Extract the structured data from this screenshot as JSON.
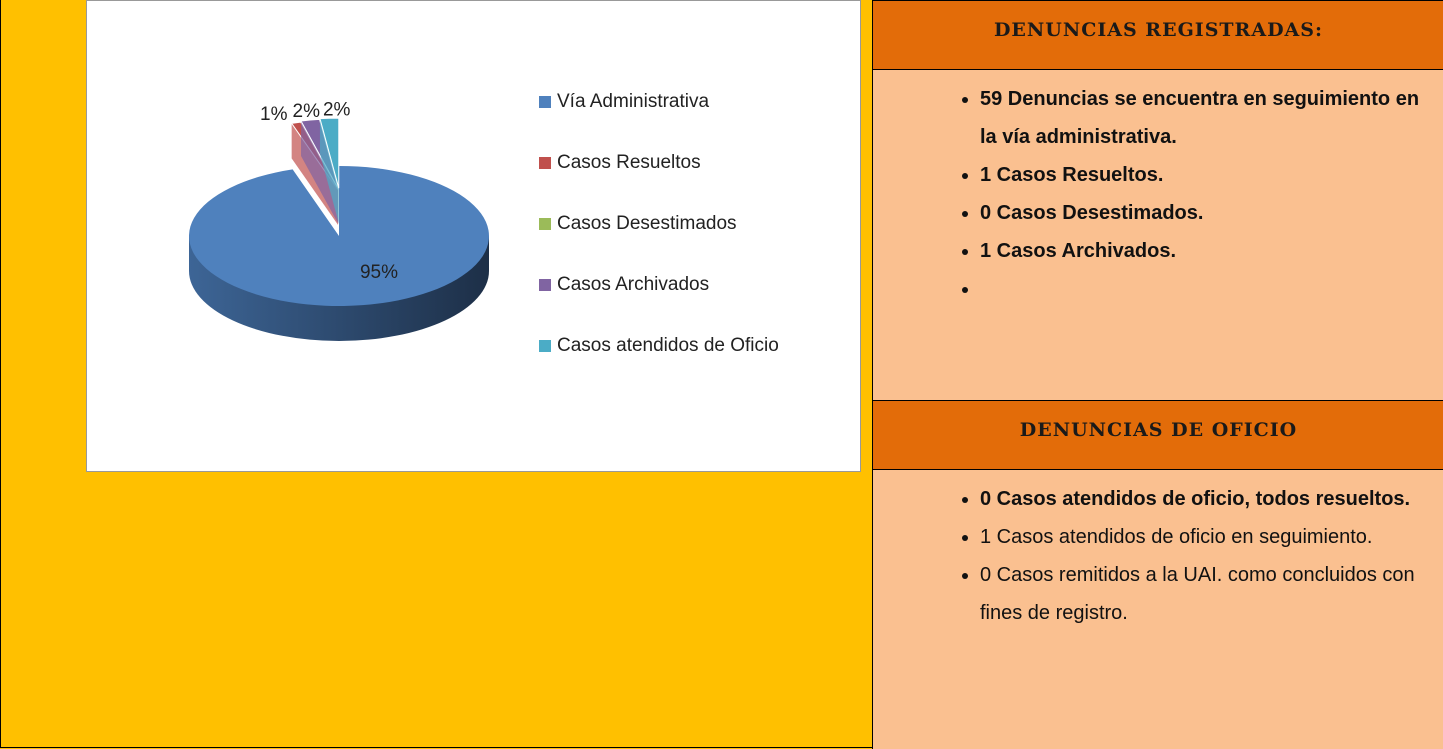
{
  "chart_data": {
    "type": "pie",
    "categories": [
      "Vía Administrativa",
      "Casos Resueltos",
      "Casos Desestimados",
      "Casos Archivados",
      "Casos atendidos de Oficio"
    ],
    "values": [
      95,
      1,
      0,
      2,
      2
    ],
    "value_labels": [
      "95%",
      "1%",
      null,
      "2%",
      "2%"
    ],
    "colors": [
      "#4f81bd",
      "#c0504d",
      "#9bbb59",
      "#8064a2",
      "#4bacc6"
    ],
    "legend": "right"
  },
  "panel": {
    "sections": [
      {
        "heading": "DENUNCIAS REGISTRADAS:",
        "items": [
          {
            "text": "59 Denuncias se  encuentra en seguimiento en la vía administrativa.",
            "bold": true
          },
          {
            "text": "1 Casos Resueltos.",
            "bold": true
          },
          {
            "text": "0 Casos Desestimados.",
            "bold": true
          },
          {
            "text": "1 Casos Archivados.",
            "bold": true
          }
        ]
      },
      {
        "heading": "DENUNCIAS DE OFICIO",
        "items": [
          {
            "text": "0   Casos atendidos de oficio, todos resueltos.",
            "bold": true
          },
          {
            "text": "1 Casos atendidos de oficio en seguimiento.",
            "bold": false
          },
          {
            "text": "0 Casos remitidos a la UAI. como concluidos con fines de registro.",
            "bold": false
          }
        ]
      }
    ]
  }
}
